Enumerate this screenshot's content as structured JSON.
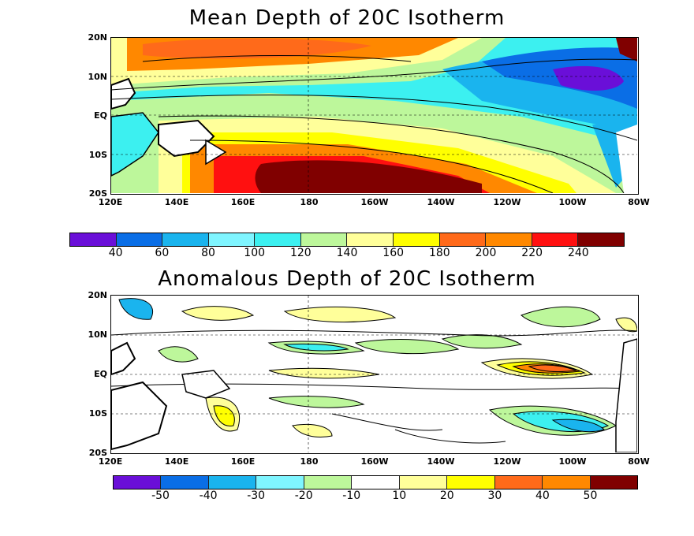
{
  "top_map": {
    "title": "Mean Depth of 20C Isotherm",
    "lat_labels": [
      "20N",
      "10N",
      "EQ",
      "10S",
      "20S"
    ],
    "lon_labels": [
      "120E",
      "140E",
      "160E",
      "180",
      "160W",
      "140W",
      "120W",
      "100W",
      "80W"
    ],
    "colorbar": {
      "colors": [
        "#6a0fd8",
        "#0a6ee6",
        "#1ab4ee",
        "#7ff5ff",
        "#3cf0f0",
        "#bdf79b",
        "#ffff9a",
        "#ffff00",
        "#ff6a1a",
        "#ff8800",
        "#ff1010",
        "#800000"
      ],
      "labels": [
        "40",
        "60",
        "80",
        "100",
        "120",
        "140",
        "160",
        "180",
        "200",
        "220",
        "240"
      ]
    }
  },
  "bottom_map": {
    "title": "Anomalous Depth of 20C Isotherm",
    "lat_labels": [
      "20N",
      "10N",
      "EQ",
      "10S",
      "20S"
    ],
    "lon_labels": [
      "120E",
      "140E",
      "160E",
      "180",
      "160W",
      "140W",
      "120W",
      "100W",
      "80W"
    ],
    "colorbar": {
      "colors": [
        "#6a0fd8",
        "#0a6ee6",
        "#1ab4ee",
        "#7ff5ff",
        "#bdf79b",
        "#ffffff",
        "#ffff9a",
        "#ffff00",
        "#ff6a1a",
        "#ff8800",
        "#800000"
      ],
      "labels": [
        "-50",
        "-40",
        "-30",
        "-20",
        "-10",
        "10",
        "20",
        "30",
        "40",
        "50"
      ]
    }
  }
}
